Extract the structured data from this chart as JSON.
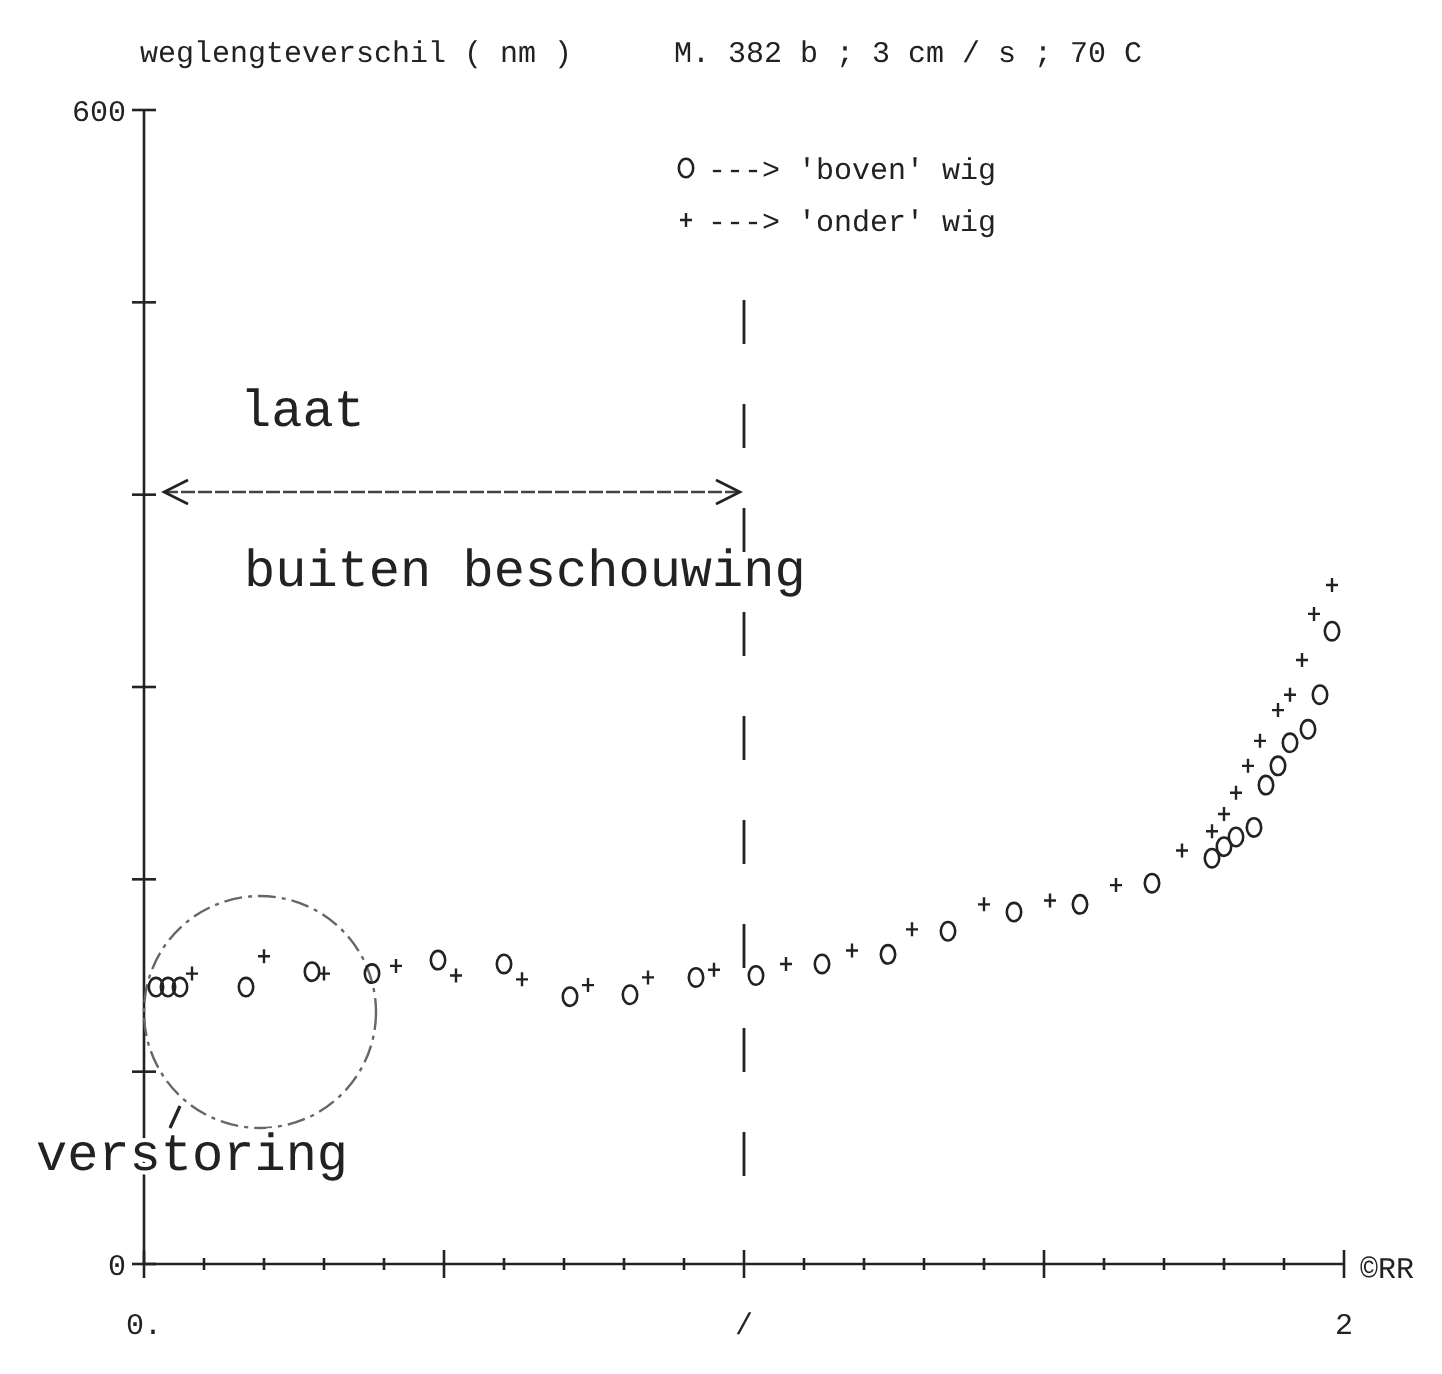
{
  "chart_data": {
    "type": "scatter",
    "title": "M. 382 b ; 3 cm / s ; 70 C",
    "ylabel": "weglengteverschil ( nm )",
    "xlim": [
      0,
      2
    ],
    "xticks": [
      {
        "value": 0,
        "label": "0."
      },
      {
        "value": 0.1,
        "label": null
      },
      {
        "value": 0.2,
        "label": null
      },
      {
        "value": 0.3,
        "label": null
      },
      {
        "value": 0.4,
        "label": null
      },
      {
        "value": 0.5,
        "label": null
      },
      {
        "value": 0.6,
        "label": null
      },
      {
        "value": 0.7,
        "label": null
      },
      {
        "value": 0.8,
        "label": null
      },
      {
        "value": 0.9,
        "label": null
      },
      {
        "value": 1,
        "label": "/"
      },
      {
        "value": 1.1,
        "label": null
      },
      {
        "value": 1.2,
        "label": null
      },
      {
        "value": 1.3,
        "label": null
      },
      {
        "value": 1.4,
        "label": null
      },
      {
        "value": 1.5,
        "label": null
      },
      {
        "value": 1.6,
        "label": null
      },
      {
        "value": 1.7,
        "label": null
      },
      {
        "value": 1.8,
        "label": null
      },
      {
        "value": 1.9,
        "label": null
      },
      {
        "value": 2,
        "label": "2"
      }
    ],
    "ylim": [
      0,
      600
    ],
    "yticks": [
      0,
      {
        "value": 100,
        "label": null
      },
      {
        "value": 200,
        "label": null
      },
      {
        "value": 300,
        "label": null
      },
      {
        "value": 400,
        "label": null
      },
      {
        "value": 500,
        "label": null
      },
      600
    ],
    "legend": "top",
    "series": [
      {
        "name": "---> 'boven' wig",
        "color": "#222222",
        "marker": "circle",
        "x": [
          0.02,
          0.04,
          0.06,
          0.17,
          0.28,
          0.38,
          0.49,
          0.6,
          0.71,
          0.81,
          0.92,
          1.02,
          1.13,
          1.24,
          1.34,
          1.45,
          1.56,
          1.68,
          1.78,
          1.8,
          1.82,
          1.85,
          1.87,
          1.89,
          1.91,
          1.94,
          1.96,
          1.98
        ],
        "values": [
          144,
          144,
          144,
          144,
          152,
          151,
          158,
          156,
          139,
          140,
          149,
          150,
          156,
          161,
          173,
          183,
          187,
          198,
          211,
          217,
          222,
          227,
          249,
          259,
          271,
          278,
          296,
          329
        ]
      },
      {
        "name": "---> 'onder' wig",
        "color": "#222222",
        "marker": "cross",
        "x": [
          0.08,
          0.2,
          0.3,
          0.42,
          0.52,
          0.63,
          0.74,
          0.84,
          0.95,
          1.07,
          1.18,
          1.28,
          1.4,
          1.51,
          1.62,
          1.73,
          1.78,
          1.8,
          1.82,
          1.84,
          1.86,
          1.89,
          1.91,
          1.93,
          1.95,
          1.98
        ],
        "values": [
          151,
          160,
          151,
          155,
          150,
          148,
          145,
          149,
          153,
          156,
          163,
          174,
          187,
          189,
          197,
          215,
          225,
          234,
          245,
          259,
          272,
          288,
          296,
          314,
          338,
          353
        ]
      }
    ],
    "ref_lines": [
      {
        "axis": "x",
        "value": 1,
        "line_style": "dashed"
      }
    ],
    "annotations": [
      "laat",
      "buiten beschouwing",
      "verstoring",
      "©RR"
    ]
  }
}
